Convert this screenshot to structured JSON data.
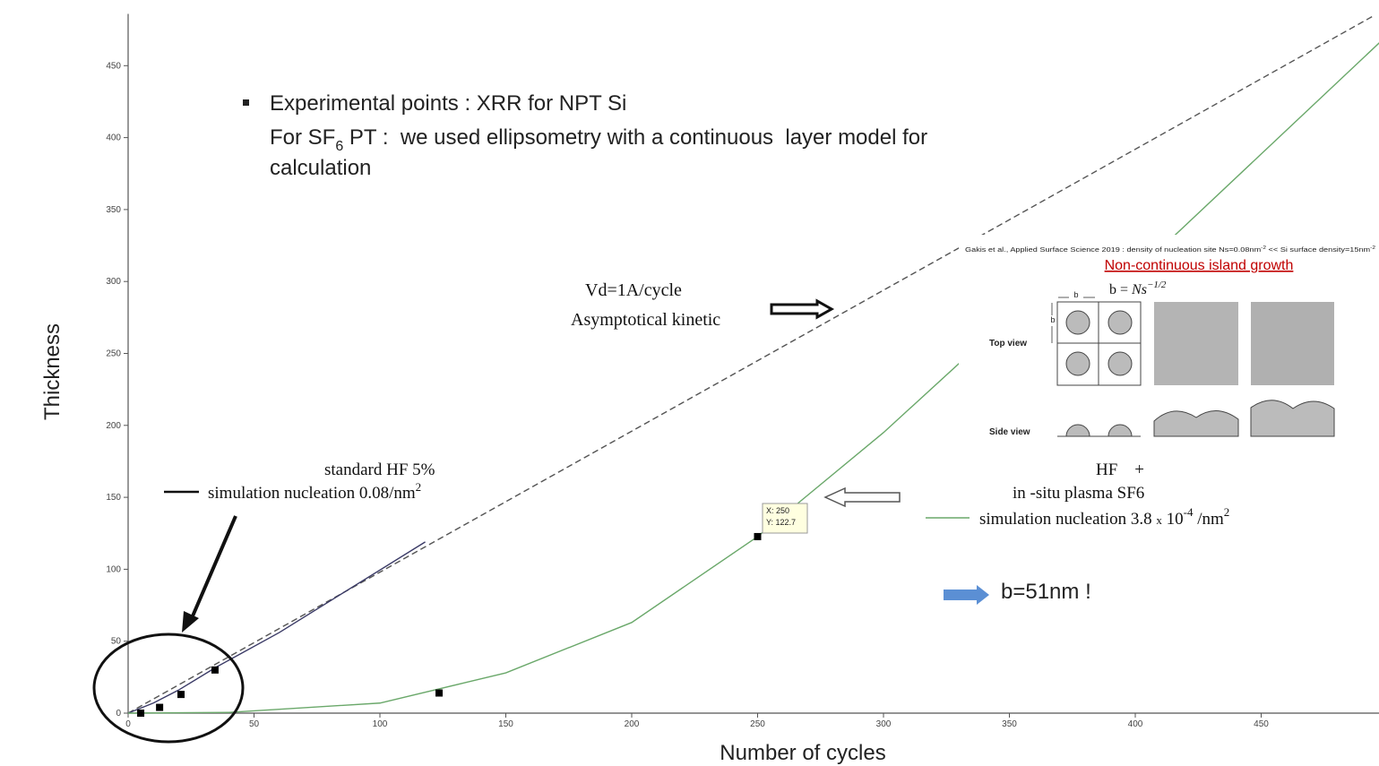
{
  "chart_data": {
    "type": "line",
    "xlabel": "Number of cycles",
    "ylabel": "Thickness",
    "xlim": [
      0,
      500
    ],
    "ylim": [
      0,
      486
    ],
    "xticks": [
      0,
      50,
      100,
      150,
      200,
      250,
      300,
      350,
      400,
      450
    ],
    "yticks": [
      0,
      50,
      100,
      150,
      200,
      250,
      300,
      350,
      400,
      450
    ],
    "series": [
      {
        "type": "line",
        "dashed": true,
        "color": "#555555",
        "x": [
          0,
          495
        ],
        "values": [
          0,
          485
        ]
      },
      {
        "type": "line",
        "dashed": false,
        "color": "#3a3a66",
        "x": [
          0,
          10,
          20,
          35,
          60,
          118
        ],
        "values": [
          0,
          7,
          16,
          32,
          56,
          119
        ]
      },
      {
        "type": "line",
        "dashed": false,
        "color": "#6aa86a",
        "x": [
          0,
          40,
          100,
          150,
          200,
          250,
          300,
          330,
          412,
          497
        ],
        "values": [
          0,
          0.5,
          7,
          28,
          63,
          122.7,
          195,
          243,
          326,
          466
        ]
      },
      {
        "type": "scatter",
        "color": "#000000",
        "x": [
          5,
          12.5,
          21,
          34.5,
          123.5,
          250
        ],
        "values": [
          0,
          4,
          13,
          30,
          14,
          122.7
        ]
      }
    ],
    "annotations": {
      "note_line1": "Experimental points : XRR for NPT Si",
      "note_line2": [
        "For SF",
        "6",
        " PT :  we used ellipsometry with a continuous  layer model for"
      ],
      "note_line3": "calculation",
      "vd": "Vd=1A/cycle",
      "asymptotical": "Asymptotical kinetic",
      "hf_legend": [
        "standard HF 5%",
        "simulation nucleation 0.08/nm",
        "2"
      ],
      "plasma_legend": [
        "HF    +",
        "in -situ plasma SF6",
        "simulation nucleation 3.8 ",
        "x",
        " 10",
        "-4",
        " /nm",
        "2"
      ],
      "b_note": "b=51nm !",
      "datatip": [
        "X: 250",
        "Y: 122.7"
      ]
    },
    "inset": {
      "citation": [
        "Gakis et al., Applied Surface Science 2019 : density of nucleation site Ns=0.08nm",
        "-2",
        " << Si surface density=15nm",
        "-2"
      ],
      "title": "Non-continuous island growth",
      "formula": [
        "b = ",
        "Ns",
        "−1/2"
      ],
      "b_top": "b",
      "b_side": "b",
      "top_view": "Top view",
      "side_view": "Side view"
    }
  }
}
